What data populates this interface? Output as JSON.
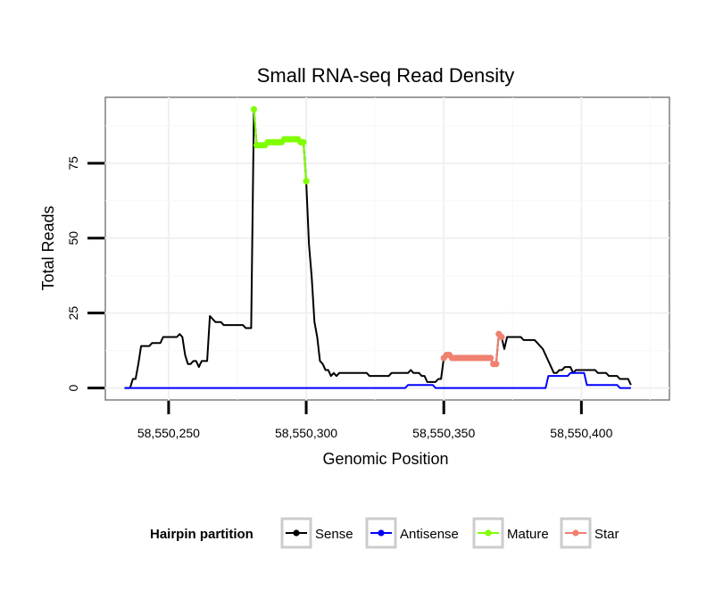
{
  "chart_data": {
    "type": "line",
    "title": "Small RNA-seq Read Density",
    "xlabel": "Genomic Position",
    "ylabel": "Total Reads",
    "xlim": [
      58550227,
      58550432
    ],
    "ylim": [
      -4,
      97
    ],
    "x_ticks": [
      58550250,
      58550300,
      58550350,
      58550400
    ],
    "x_tick_labels": [
      "58,550,250",
      "58,550,300",
      "58,550,350",
      "58,550,400"
    ],
    "y_ticks": [
      0,
      25,
      50,
      75
    ],
    "y_tick_labels": [
      "0",
      "25",
      "50",
      "75"
    ],
    "grid": true,
    "legend": {
      "title": "Hairpin partition",
      "position": "bottom",
      "entries": [
        "Sense",
        "Antisense",
        "Mature",
        "Star"
      ]
    },
    "series": [
      {
        "name": "Sense",
        "color": "#000000",
        "mode": "line",
        "points": [
          [
            58550234,
            0
          ],
          [
            58550236,
            0
          ],
          [
            58550237,
            3
          ],
          [
            58550238,
            3
          ],
          [
            58550239,
            8
          ],
          [
            58550240,
            14
          ],
          [
            58550241,
            14
          ],
          [
            58550242,
            14
          ],
          [
            58550243,
            14
          ],
          [
            58550244,
            15
          ],
          [
            58550245,
            15
          ],
          [
            58550246,
            15
          ],
          [
            58550247,
            15
          ],
          [
            58550248,
            17
          ],
          [
            58550249,
            17
          ],
          [
            58550250,
            17
          ],
          [
            58550251,
            17
          ],
          [
            58550252,
            17
          ],
          [
            58550253,
            17
          ],
          [
            58550254,
            18
          ],
          [
            58550255,
            17
          ],
          [
            58550256,
            11
          ],
          [
            58550257,
            8
          ],
          [
            58550258,
            8
          ],
          [
            58550259,
            9
          ],
          [
            58550260,
            9
          ],
          [
            58550261,
            7
          ],
          [
            58550262,
            9
          ],
          [
            58550263,
            9
          ],
          [
            58550264,
            9
          ],
          [
            58550265,
            24
          ],
          [
            58550266,
            23
          ],
          [
            58550267,
            22
          ],
          [
            58550268,
            22
          ],
          [
            58550269,
            22
          ],
          [
            58550270,
            21
          ],
          [
            58550271,
            21
          ],
          [
            58550272,
            21
          ],
          [
            58550273,
            21
          ],
          [
            58550274,
            21
          ],
          [
            58550275,
            21
          ],
          [
            58550276,
            21
          ],
          [
            58550277,
            21
          ],
          [
            58550278,
            20
          ],
          [
            58550279,
            20
          ],
          [
            58550280,
            20
          ],
          [
            58550281,
            93
          ],
          [
            58550282,
            81
          ],
          [
            58550283,
            81
          ],
          [
            58550284,
            81
          ],
          [
            58550285,
            81
          ],
          [
            58550286,
            82
          ],
          [
            58550287,
            82
          ],
          [
            58550288,
            82
          ],
          [
            58550289,
            82
          ],
          [
            58550290,
            82
          ],
          [
            58550291,
            82
          ],
          [
            58550292,
            83
          ],
          [
            58550293,
            83
          ],
          [
            58550294,
            83
          ],
          [
            58550295,
            83
          ],
          [
            58550296,
            83
          ],
          [
            58550297,
            83
          ],
          [
            58550298,
            82
          ],
          [
            58550299,
            82
          ],
          [
            58550300,
            69
          ],
          [
            58550301,
            48
          ],
          [
            58550302,
            37
          ],
          [
            58550303,
            22
          ],
          [
            58550304,
            17
          ],
          [
            58550305,
            9
          ],
          [
            58550306,
            8
          ],
          [
            58550307,
            6
          ],
          [
            58550308,
            6
          ],
          [
            58550309,
            4
          ],
          [
            58550310,
            5
          ],
          [
            58550311,
            4
          ],
          [
            58550312,
            5
          ],
          [
            58550313,
            5
          ],
          [
            58550314,
            5
          ],
          [
            58550315,
            5
          ],
          [
            58550316,
            5
          ],
          [
            58550317,
            5
          ],
          [
            58550318,
            5
          ],
          [
            58550319,
            5
          ],
          [
            58550320,
            5
          ],
          [
            58550321,
            5
          ],
          [
            58550322,
            5
          ],
          [
            58550323,
            4
          ],
          [
            58550324,
            4
          ],
          [
            58550325,
            4
          ],
          [
            58550326,
            4
          ],
          [
            58550327,
            4
          ],
          [
            58550328,
            4
          ],
          [
            58550329,
            4
          ],
          [
            58550330,
            4
          ],
          [
            58550331,
            5
          ],
          [
            58550332,
            5
          ],
          [
            58550333,
            5
          ],
          [
            58550334,
            5
          ],
          [
            58550335,
            5
          ],
          [
            58550336,
            5
          ],
          [
            58550337,
            5
          ],
          [
            58550338,
            6
          ],
          [
            58550339,
            5
          ],
          [
            58550340,
            5
          ],
          [
            58550341,
            5
          ],
          [
            58550342,
            4
          ],
          [
            58550343,
            4
          ],
          [
            58550344,
            2
          ],
          [
            58550345,
            2
          ],
          [
            58550346,
            2
          ],
          [
            58550347,
            2
          ],
          [
            58550348,
            3
          ],
          [
            58550349,
            3
          ],
          [
            58550350,
            10
          ],
          [
            58550351,
            11
          ],
          [
            58550352,
            11
          ],
          [
            58550353,
            10
          ],
          [
            58550354,
            10
          ],
          [
            58550355,
            10
          ],
          [
            58550356,
            10
          ],
          [
            58550357,
            10
          ],
          [
            58550358,
            10
          ],
          [
            58550359,
            10
          ],
          [
            58550360,
            10
          ],
          [
            58550361,
            10
          ],
          [
            58550362,
            10
          ],
          [
            58550363,
            10
          ],
          [
            58550364,
            10
          ],
          [
            58550365,
            10
          ],
          [
            58550366,
            10
          ],
          [
            58550367,
            10
          ],
          [
            58550368,
            8
          ],
          [
            58550369,
            8
          ],
          [
            58550370,
            18
          ],
          [
            58550371,
            17
          ],
          [
            58550372,
            13
          ],
          [
            58550373,
            17
          ],
          [
            58550374,
            17
          ],
          [
            58550375,
            17
          ],
          [
            58550376,
            17
          ],
          [
            58550377,
            17
          ],
          [
            58550378,
            17
          ],
          [
            58550379,
            16
          ],
          [
            58550380,
            16
          ],
          [
            58550381,
            16
          ],
          [
            58550382,
            16
          ],
          [
            58550383,
            16
          ],
          [
            58550384,
            15
          ],
          [
            58550385,
            14
          ],
          [
            58550386,
            13
          ],
          [
            58550387,
            11
          ],
          [
            58550388,
            9
          ],
          [
            58550389,
            7
          ],
          [
            58550390,
            5
          ],
          [
            58550391,
            5
          ],
          [
            58550392,
            6
          ],
          [
            58550393,
            6
          ],
          [
            58550394,
            7
          ],
          [
            58550395,
            7
          ],
          [
            58550396,
            7
          ],
          [
            58550397,
            5
          ],
          [
            58550398,
            6
          ],
          [
            58550399,
            6
          ],
          [
            58550400,
            6
          ],
          [
            58550401,
            6
          ],
          [
            58550402,
            6
          ],
          [
            58550403,
            6
          ],
          [
            58550404,
            6
          ],
          [
            58550405,
            6
          ],
          [
            58550406,
            5
          ],
          [
            58550407,
            5
          ],
          [
            58550408,
            5
          ],
          [
            58550409,
            5
          ],
          [
            58550410,
            4
          ],
          [
            58550411,
            4
          ],
          [
            58550412,
            4
          ],
          [
            58550413,
            4
          ],
          [
            58550414,
            3
          ],
          [
            58550415,
            3
          ],
          [
            58550416,
            3
          ],
          [
            58550417,
            3
          ],
          [
            58550418,
            1
          ]
        ]
      },
      {
        "name": "Antisense",
        "color": "#0000ff",
        "mode": "line",
        "points": [
          [
            58550234,
            0
          ],
          [
            58550336,
            0
          ],
          [
            58550337,
            1
          ],
          [
            58550338,
            1
          ],
          [
            58550339,
            1
          ],
          [
            58550340,
            1
          ],
          [
            58550341,
            1
          ],
          [
            58550342,
            1
          ],
          [
            58550343,
            1
          ],
          [
            58550344,
            1
          ],
          [
            58550345,
            1
          ],
          [
            58550346,
            1
          ],
          [
            58550347,
            0
          ],
          [
            58550372,
            0
          ],
          [
            58550387,
            0
          ],
          [
            58550388,
            4
          ],
          [
            58550389,
            4
          ],
          [
            58550390,
            4
          ],
          [
            58550391,
            4
          ],
          [
            58550392,
            4
          ],
          [
            58550393,
            4
          ],
          [
            58550394,
            4
          ],
          [
            58550395,
            4
          ],
          [
            58550396,
            5
          ],
          [
            58550397,
            5
          ],
          [
            58550398,
            5
          ],
          [
            58550399,
            5
          ],
          [
            58550400,
            5
          ],
          [
            58550401,
            5
          ],
          [
            58550402,
            1
          ],
          [
            58550403,
            1
          ],
          [
            58550404,
            1
          ],
          [
            58550405,
            1
          ],
          [
            58550406,
            1
          ],
          [
            58550407,
            1
          ],
          [
            58550408,
            1
          ],
          [
            58550409,
            1
          ],
          [
            58550410,
            1
          ],
          [
            58550411,
            1
          ],
          [
            58550412,
            1
          ],
          [
            58550413,
            1
          ],
          [
            58550414,
            0
          ],
          [
            58550418,
            0
          ]
        ]
      },
      {
        "name": "Mature",
        "color": "#7fff00",
        "mode": "line+markers",
        "points": [
          [
            58550281,
            93
          ],
          [
            58550282,
            81
          ],
          [
            58550283,
            81
          ],
          [
            58550284,
            81
          ],
          [
            58550285,
            81
          ],
          [
            58550286,
            82
          ],
          [
            58550287,
            82
          ],
          [
            58550288,
            82
          ],
          [
            58550289,
            82
          ],
          [
            58550290,
            82
          ],
          [
            58550291,
            82
          ],
          [
            58550292,
            83
          ],
          [
            58550293,
            83
          ],
          [
            58550294,
            83
          ],
          [
            58550295,
            83
          ],
          [
            58550296,
            83
          ],
          [
            58550297,
            83
          ],
          [
            58550298,
            82
          ],
          [
            58550299,
            82
          ],
          [
            58550300,
            69
          ]
        ]
      },
      {
        "name": "Star",
        "color": "#f08070",
        "mode": "line+markers",
        "points": [
          [
            58550350,
            10
          ],
          [
            58550351,
            11
          ],
          [
            58550352,
            11
          ],
          [
            58550353,
            10
          ],
          [
            58550354,
            10
          ],
          [
            58550355,
            10
          ],
          [
            58550356,
            10
          ],
          [
            58550357,
            10
          ],
          [
            58550358,
            10
          ],
          [
            58550359,
            10
          ],
          [
            58550360,
            10
          ],
          [
            58550361,
            10
          ],
          [
            58550362,
            10
          ],
          [
            58550363,
            10
          ],
          [
            58550364,
            10
          ],
          [
            58550365,
            10
          ],
          [
            58550366,
            10
          ],
          [
            58550367,
            10
          ],
          [
            58550368,
            8
          ],
          [
            58550369,
            8
          ],
          [
            58550370,
            18
          ],
          [
            58550371,
            17
          ]
        ]
      }
    ]
  }
}
